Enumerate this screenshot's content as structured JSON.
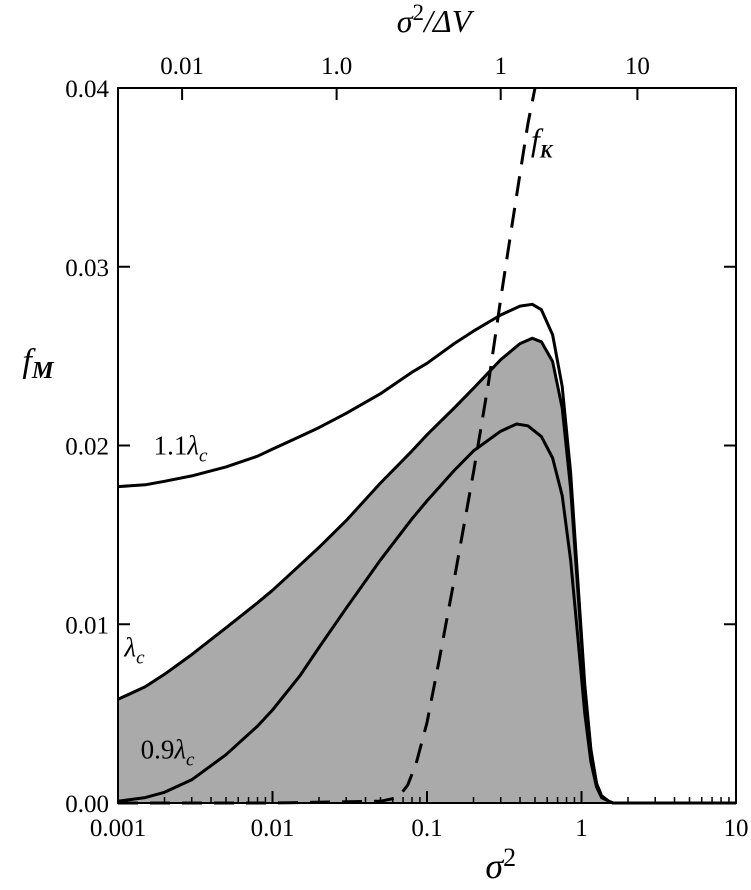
{
  "chart_data": {
    "type": "line",
    "title": "",
    "xlabel": "σ2",
    "ylabel": "fM",
    "x2label": "σ2/ΔV",
    "xscale": "log",
    "xlim": [
      0.001,
      10
    ],
    "ylim": [
      0,
      0.04
    ],
    "grid": false,
    "x_ticks": [
      0.001,
      0.01,
      0.1,
      1,
      10
    ],
    "x_tick_labels": [
      "0.001",
      "0.01",
      "0.1",
      "1",
      "10"
    ],
    "y_ticks": [
      0,
      0.01,
      0.02,
      0.03,
      0.04
    ],
    "y_tick_labels": [
      "0.00",
      "0.01",
      "0.02",
      "0.03",
      "0.04"
    ],
    "top_ticks": [
      {
        "x": 0.0026,
        "label": "0.01"
      },
      {
        "x": 0.026,
        "label": "1.0"
      },
      {
        "x": 0.3,
        "label": "1"
      },
      {
        "x": 2.3,
        "label": "10"
      }
    ],
    "series": [
      {
        "name": "1.1λc",
        "style": "solid",
        "x": [
          0.001,
          0.0015,
          0.002,
          0.003,
          0.005,
          0.008,
          0.01,
          0.015,
          0.02,
          0.03,
          0.05,
          0.08,
          0.1,
          0.15,
          0.2,
          0.3,
          0.4,
          0.48,
          0.55,
          0.65,
          0.75,
          0.85,
          0.95,
          1.05,
          1.15,
          1.25,
          1.35,
          1.5,
          1.6,
          2,
          5,
          10
        ],
        "y": [
          0.0177,
          0.0178,
          0.018,
          0.0183,
          0.0188,
          0.0194,
          0.0198,
          0.0205,
          0.021,
          0.0218,
          0.0229,
          0.0241,
          0.0246,
          0.0257,
          0.0264,
          0.0273,
          0.0278,
          0.0279,
          0.0276,
          0.0262,
          0.0233,
          0.0185,
          0.0122,
          0.0066,
          0.003,
          0.0011,
          0.0004,
          0.0001,
          0,
          0,
          0,
          0
        ]
      },
      {
        "name": "λc",
        "style": "solid",
        "x": [
          0.001,
          0.0015,
          0.002,
          0.003,
          0.005,
          0.008,
          0.01,
          0.015,
          0.02,
          0.03,
          0.05,
          0.08,
          0.1,
          0.15,
          0.2,
          0.3,
          0.4,
          0.48,
          0.55,
          0.65,
          0.75,
          0.85,
          0.95,
          1.05,
          1.15,
          1.25,
          1.35,
          1.5,
          1.6,
          2,
          5,
          10
        ],
        "y": [
          0.0058,
          0.0065,
          0.0072,
          0.0083,
          0.0098,
          0.0112,
          0.0119,
          0.0133,
          0.0143,
          0.0158,
          0.0179,
          0.0197,
          0.0206,
          0.0221,
          0.0232,
          0.0248,
          0.0257,
          0.026,
          0.0258,
          0.0247,
          0.0221,
          0.0176,
          0.0117,
          0.0064,
          0.0029,
          0.0011,
          0.0004,
          0.0001,
          0,
          0,
          0,
          0
        ]
      },
      {
        "name": "0.9λc",
        "style": "solid",
        "x": [
          0.001,
          0.0015,
          0.002,
          0.003,
          0.005,
          0.008,
          0.01,
          0.015,
          0.02,
          0.03,
          0.05,
          0.08,
          0.1,
          0.15,
          0.2,
          0.3,
          0.38,
          0.45,
          0.55,
          0.65,
          0.75,
          0.85,
          0.95,
          1.05,
          1.15,
          1.25,
          1.35,
          1.5,
          1.6,
          2,
          5,
          10
        ],
        "y": [
          0.0001,
          0.0003,
          0.0006,
          0.0013,
          0.0027,
          0.0043,
          0.0052,
          0.0071,
          0.0087,
          0.0109,
          0.0136,
          0.0159,
          0.0169,
          0.0186,
          0.0197,
          0.0208,
          0.0212,
          0.0211,
          0.0205,
          0.0193,
          0.0172,
          0.0136,
          0.0091,
          0.005,
          0.0023,
          0.0009,
          0.0003,
          0.0001,
          0,
          0,
          0,
          0
        ]
      },
      {
        "name": "fK",
        "style": "dashed",
        "x": [
          0.001,
          0.01,
          0.05,
          0.065,
          0.075,
          0.085,
          0.1,
          0.12,
          0.15,
          0.2,
          0.25,
          0.3,
          0.35,
          0.4,
          0.45,
          0.5
        ],
        "y": [
          0,
          0,
          0.0001,
          0.0003,
          0.001,
          0.0022,
          0.0045,
          0.008,
          0.0125,
          0.0185,
          0.0235,
          0.0282,
          0.032,
          0.0352,
          0.038,
          0.0402
        ]
      }
    ],
    "shaded_region": "area under λc",
    "annotations": [
      {
        "sym": "f",
        "sub": "K",
        "x": 0.47,
        "y": 0.0365
      },
      {
        "sym": "1.1λ",
        "sub": "c",
        "x": 0.0017,
        "y": 0.0195
      },
      {
        "sym": "λ",
        "sub": "c",
        "x": 0.0011,
        "y": 0.0082
      },
      {
        "sym": "0.9λ",
        "sub": "c",
        "x": 0.0014,
        "y": 0.0025
      }
    ]
  }
}
